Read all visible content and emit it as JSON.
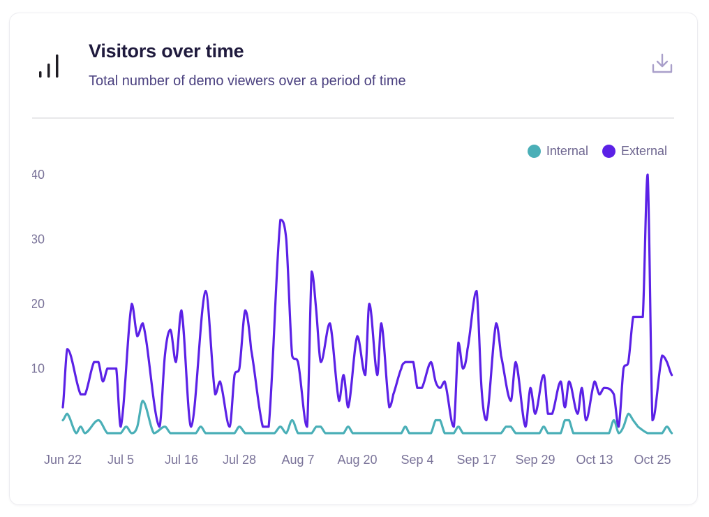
{
  "header": {
    "title": "Visitors over time",
    "subtitle": "Total number of demo viewers over a period of time",
    "icon": "bar-chart-icon",
    "download_icon": "download-icon"
  },
  "chart_data": {
    "type": "line",
    "title": "Visitors over time",
    "xlabel": "",
    "ylabel": "",
    "ylim": [
      0,
      40
    ],
    "y_ticks": [
      "10",
      "20",
      "30",
      "40"
    ],
    "x_ticks": [
      "Jun 22",
      "Jul 5",
      "Jul 16",
      "Jul 28",
      "Aug 7",
      "Aug 20",
      "Sep 4",
      "Sep 17",
      "Sep 29",
      "Oct 13",
      "Oct 25"
    ],
    "grid": false,
    "legend": "top-right",
    "series": [
      {
        "name": "Internal",
        "color": "#4aafb7",
        "points": [
          [
            "Jun 22",
            2
          ],
          [
            "Jun 23",
            3
          ],
          [
            "Jun 25",
            0
          ],
          [
            "Jun 26",
            1
          ],
          [
            "Jun 27",
            0
          ],
          [
            "Jun 30",
            2
          ],
          [
            "Jul 2",
            0
          ],
          [
            "Jul 5",
            0
          ],
          [
            "Jul 6",
            1
          ],
          [
            "Jul 7",
            0
          ],
          [
            "Jul 8",
            1
          ],
          [
            "Jul 9",
            5
          ],
          [
            "Jul 11",
            0
          ],
          [
            "Jul 13",
            1
          ],
          [
            "Jul 14",
            0
          ],
          [
            "Jul 19",
            0
          ],
          [
            "Jul 20",
            1
          ],
          [
            "Jul 21",
            0
          ],
          [
            "Jul 27",
            0
          ],
          [
            "Jul 28",
            1
          ],
          [
            "Jul 29",
            0
          ],
          [
            "Aug 3",
            0
          ],
          [
            "Aug 4",
            1
          ],
          [
            "Aug 5",
            0
          ],
          [
            "Aug 6",
            2
          ],
          [
            "Aug 7",
            0
          ],
          [
            "Aug 10",
            0
          ],
          [
            "Aug 11",
            1
          ],
          [
            "Aug 12",
            1
          ],
          [
            "Aug 13",
            0
          ],
          [
            "Aug 17",
            0
          ],
          [
            "Aug 18",
            1
          ],
          [
            "Aug 19",
            0
          ],
          [
            "Aug 31",
            0
          ],
          [
            "Sep 1",
            1
          ],
          [
            "Sep 2",
            0
          ],
          [
            "Sep 7",
            0
          ],
          [
            "Sep 8",
            2
          ],
          [
            "Sep 9",
            2
          ],
          [
            "Sep 10",
            0
          ],
          [
            "Sep 12",
            0
          ],
          [
            "Sep 13",
            1
          ],
          [
            "Sep 14",
            0
          ],
          [
            "Sep 22",
            0
          ],
          [
            "Sep 23",
            1
          ],
          [
            "Sep 24",
            1
          ],
          [
            "Sep 25",
            0
          ],
          [
            "Sep 30",
            0
          ],
          [
            "Oct 1",
            1
          ],
          [
            "Oct 2",
            0
          ],
          [
            "Oct 5",
            0
          ],
          [
            "Oct 6",
            2
          ],
          [
            "Oct 7",
            2
          ],
          [
            "Oct 8",
            0
          ],
          [
            "Oct 16",
            0
          ],
          [
            "Oct 17",
            2
          ],
          [
            "Oct 18",
            0
          ],
          [
            "Oct 19",
            1
          ],
          [
            "Oct 20",
            3
          ],
          [
            "Oct 21",
            2
          ],
          [
            "Oct 22",
            1
          ],
          [
            "Oct 24",
            0
          ],
          [
            "Oct 27",
            0
          ],
          [
            "Oct 28",
            1
          ],
          [
            "Oct 29",
            0
          ]
        ]
      },
      {
        "name": "External",
        "color": "#5b21e6",
        "points": [
          [
            "Jun 22",
            4
          ],
          [
            "Jun 23",
            13
          ],
          [
            "Jun 26",
            6
          ],
          [
            "Jun 27",
            6
          ],
          [
            "Jun 29",
            11
          ],
          [
            "Jun 30",
            11
          ],
          [
            "Jul 1",
            8
          ],
          [
            "Jul 2",
            10
          ],
          [
            "Jul 4",
            10
          ],
          [
            "Jul 5",
            1
          ],
          [
            "Jul 7",
            20
          ],
          [
            "Jul 8",
            15
          ],
          [
            "Jul 9",
            17
          ],
          [
            "Jul 12",
            1
          ],
          [
            "Jul 13",
            12
          ],
          [
            "Jul 14",
            16
          ],
          [
            "Jul 15",
            11
          ],
          [
            "Jul 16",
            19
          ],
          [
            "Jul 18",
            1
          ],
          [
            "Jul 21",
            22
          ],
          [
            "Jul 23",
            6
          ],
          [
            "Jul 24",
            8
          ],
          [
            "Jul 26",
            1
          ],
          [
            "Jul 27",
            9
          ],
          [
            "Jul 28",
            10
          ],
          [
            "Jul 29",
            19
          ],
          [
            "Jul 30",
            13
          ],
          [
            "Aug 1",
            1
          ],
          [
            "Aug 2",
            1
          ],
          [
            "Aug 4",
            33
          ],
          [
            "Aug 5",
            30
          ],
          [
            "Aug 6",
            12
          ],
          [
            "Aug 7",
            11
          ],
          [
            "Aug 9",
            1
          ],
          [
            "Aug 10",
            25
          ],
          [
            "Aug 11",
            19
          ],
          [
            "Aug 12",
            11
          ],
          [
            "Aug 14",
            17
          ],
          [
            "Aug 16",
            5
          ],
          [
            "Aug 17",
            9
          ],
          [
            "Aug 18",
            4
          ],
          [
            "Aug 20",
            15
          ],
          [
            "Aug 22",
            9
          ],
          [
            "Aug 23",
            20
          ],
          [
            "Aug 25",
            9
          ],
          [
            "Aug 26",
            17
          ],
          [
            "Aug 28",
            4
          ],
          [
            "Aug 29",
            6
          ],
          [
            "Aug 31",
            10
          ],
          [
            "Sep 1",
            11
          ],
          [
            "Sep 3",
            11
          ],
          [
            "Sep 4",
            7
          ],
          [
            "Sep 5",
            7
          ],
          [
            "Sep 7",
            11
          ],
          [
            "Sep 8",
            8
          ],
          [
            "Sep 9",
            7
          ],
          [
            "Sep 10",
            8
          ],
          [
            "Sep 12",
            1
          ],
          [
            "Sep 13",
            14
          ],
          [
            "Sep 14",
            10
          ],
          [
            "Sep 15",
            13
          ],
          [
            "Sep 17",
            22
          ],
          [
            "Sep 18",
            7
          ],
          [
            "Sep 19",
            2
          ],
          [
            "Sep 21",
            17
          ],
          [
            "Sep 22",
            12
          ],
          [
            "Sep 24",
            5
          ],
          [
            "Sep 25",
            11
          ],
          [
            "Sep 27",
            1
          ],
          [
            "Sep 28",
            7
          ],
          [
            "Sep 29",
            3
          ],
          [
            "Oct 1",
            9
          ],
          [
            "Oct 2",
            3
          ],
          [
            "Oct 3",
            3
          ],
          [
            "Oct 5",
            8
          ],
          [
            "Oct 6",
            4
          ],
          [
            "Oct 7",
            8
          ],
          [
            "Oct 9",
            3
          ],
          [
            "Oct 10",
            7
          ],
          [
            "Oct 11",
            2
          ],
          [
            "Oct 13",
            8
          ],
          [
            "Oct 14",
            6
          ],
          [
            "Oct 15",
            7
          ],
          [
            "Oct 17",
            6
          ],
          [
            "Oct 18",
            1
          ],
          [
            "Oct 19",
            10
          ],
          [
            "Oct 20",
            11
          ],
          [
            "Oct 21",
            18
          ],
          [
            "Oct 23",
            18
          ],
          [
            "Oct 24",
            40
          ],
          [
            "Oct 25",
            2
          ],
          [
            "Oct 27",
            12
          ],
          [
            "Oct 28",
            11
          ],
          [
            "Oct 29",
            9
          ]
        ]
      }
    ]
  }
}
